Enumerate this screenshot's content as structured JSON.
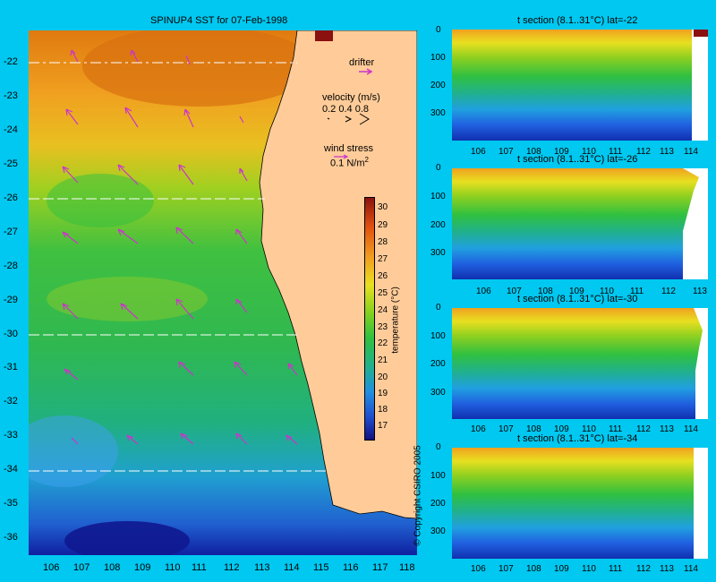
{
  "main_map": {
    "title": "SPINUP4 SST for 07-Feb-1998",
    "lat_ticks": [
      "-22",
      "-23",
      "-24",
      "-25",
      "-26",
      "-27",
      "-28",
      "-29",
      "-30",
      "-31",
      "-32",
      "-33",
      "-34",
      "-35",
      "-36"
    ],
    "lon_ticks": [
      "106",
      "107",
      "108",
      "109",
      "110",
      "111",
      "112",
      "113",
      "114",
      "115",
      "116",
      "117",
      "118"
    ],
    "legend": {
      "drifter_label": "drifter",
      "velocity_label": "velocity (m/s)",
      "velocity_scale": "0.2 0.4 0.8",
      "wind_label": "wind stress",
      "wind_value": "0.1 N/m",
      "wind_unit_sup": "2"
    },
    "colorbar": {
      "label": "temperature (°C)",
      "ticks": [
        "30",
        "29",
        "28",
        "27",
        "26",
        "25",
        "24",
        "23",
        "22",
        "21",
        "20",
        "19",
        "18",
        "17"
      ]
    },
    "section_lines_lat": [
      "-22",
      "-26",
      "-30",
      "-34"
    ]
  },
  "sections": [
    {
      "title": "t section (8.1..31°C) lat=-22",
      "depth_ticks": [
        "0",
        "100",
        "200",
        "300"
      ],
      "lon_ticks": [
        "106",
        "107",
        "108",
        "109",
        "110",
        "111",
        "112",
        "113",
        "114"
      ]
    },
    {
      "title": "t section (8.1..31°C) lat=-26",
      "depth_ticks": [
        "0",
        "100",
        "200",
        "300"
      ],
      "lon_ticks": [
        "106",
        "107",
        "108",
        "109",
        "110",
        "111",
        "112",
        "113"
      ]
    },
    {
      "title": "t section (8.1..31°C) lat=-30",
      "depth_ticks": [
        "0",
        "100",
        "200",
        "300"
      ],
      "lon_ticks": [
        "106",
        "107",
        "108",
        "109",
        "110",
        "111",
        "112",
        "113",
        "114"
      ]
    },
    {
      "title": "t section (8.1..31°C) lat=-34",
      "depth_ticks": [
        "0",
        "100",
        "200",
        "300"
      ],
      "lon_ticks": [
        "106",
        "107",
        "108",
        "109",
        "110",
        "111",
        "112",
        "113",
        "114"
      ]
    }
  ],
  "copyright": "© Copyright CSIRO 2005",
  "colors": {
    "background": "#00c8f0",
    "land": "#ffcc99",
    "arrows": "#cc33cc"
  }
}
